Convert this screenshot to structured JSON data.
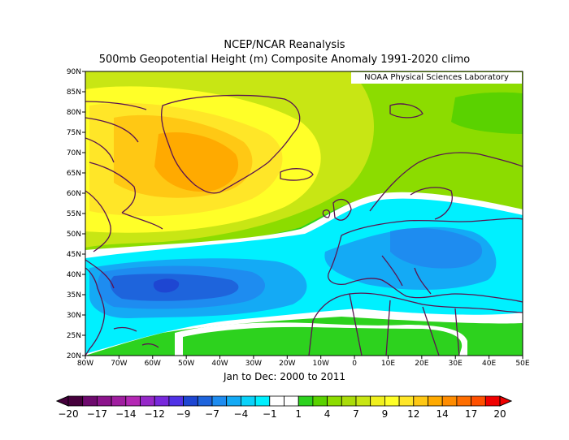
{
  "title_line1": "NCEP/NCAR Reanalysis",
  "title_line2": "500mb Geopotential Height (m) Composite Anomaly 1991-2020 climo",
  "credit": "NOAA Physical Sciences Laboratory",
  "period": "Jan to Dec: 2000 to 2011",
  "lat_labels": [
    "90N",
    "85N",
    "80N",
    "75N",
    "70N",
    "65N",
    "60N",
    "55N",
    "50N",
    "45N",
    "40N",
    "35N",
    "30N",
    "25N",
    "20N"
  ],
  "lon_labels": [
    "80W",
    "70W",
    "60W",
    "50W",
    "40W",
    "30W",
    "20W",
    "10W",
    "0",
    "10E",
    "20E",
    "30E",
    "40E",
    "50E"
  ],
  "colorbar": {
    "labels": [
      "-20",
      "-17",
      "-14",
      "-12",
      "-9",
      "-7",
      "-4",
      "-1",
      "1",
      "4",
      "7",
      "9",
      "12",
      "14",
      "17",
      "20"
    ],
    "colors": [
      "#46003c",
      "#6e0a6e",
      "#8c148c",
      "#a01ea0",
      "#b428b4",
      "#9628c8",
      "#7828dc",
      "#5032e6",
      "#1e46d2",
      "#1e64dc",
      "#1e8cf0",
      "#14aaf5",
      "#0ad2fa",
      "#00f0ff",
      "#ffffff",
      "#ffffff",
      "#2dd21e",
      "#5ad200",
      "#8cdc00",
      "#aadc0a",
      "#c8e614",
      "#f0f01e",
      "#ffff28",
      "#ffe628",
      "#ffc814",
      "#ffaa00",
      "#ff8c00",
      "#ff6e00",
      "#ff5000",
      "#f00000"
    ]
  },
  "colors": {
    "land_outline": "#5a1450",
    "frame": "#000000"
  }
}
